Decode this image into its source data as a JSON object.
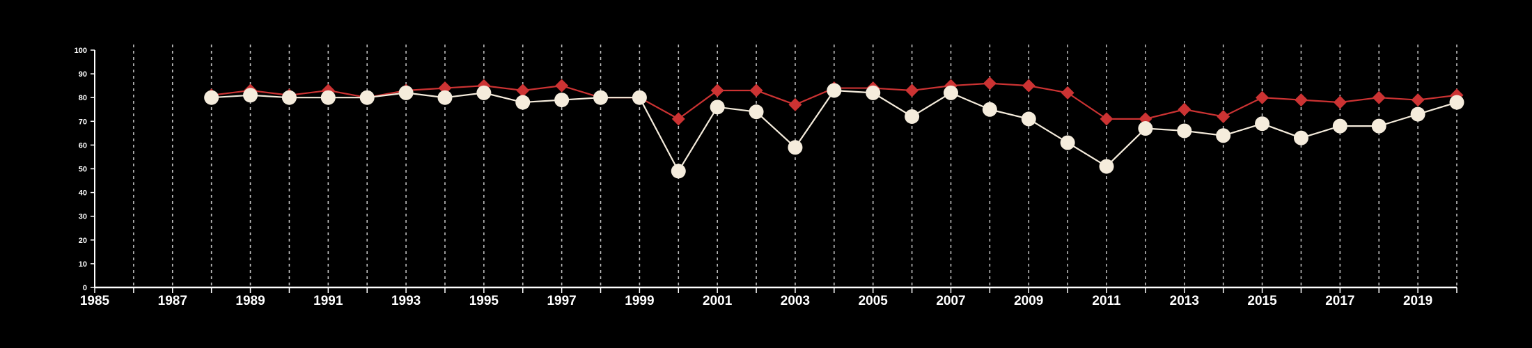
{
  "chart_data": {
    "type": "line",
    "title": "",
    "xlabel": "",
    "ylabel": "",
    "xlim": [
      1985,
      2020
    ],
    "ylim": [
      0,
      100
    ],
    "y_ticks": [
      0,
      10,
      20,
      30,
      40,
      50,
      60,
      70,
      80,
      90,
      100
    ],
    "x_tick_labels": [
      "1985",
      "1987",
      "1989",
      "1991",
      "1993",
      "1995",
      "1997",
      "1999",
      "2001",
      "2003",
      "2005",
      "2007",
      "2009",
      "2011",
      "2013",
      "2015",
      "2017",
      "2019"
    ],
    "grid": "vertical dashed at every year",
    "legend": "none",
    "x": [
      1988,
      1989,
      1990,
      1991,
      1992,
      1993,
      1994,
      1995,
      1996,
      1997,
      1998,
      1999,
      2000,
      2001,
      2002,
      2003,
      2004,
      2005,
      2006,
      2007,
      2008,
      2009,
      2010,
      2011,
      2012,
      2013,
      2014,
      2015,
      2016,
      2017,
      2018,
      2019,
      2020
    ],
    "series": [
      {
        "color": "#cc3333",
        "marker": "diamond",
        "values": [
          81,
          83,
          81,
          83,
          80,
          83,
          84,
          85,
          83,
          85,
          80,
          80,
          71,
          83,
          83,
          77,
          84,
          84,
          83,
          85,
          86,
          85,
          82,
          71,
          71,
          75,
          72,
          80,
          79,
          78,
          80,
          79,
          81
        ]
      },
      {
        "color": "#f5ecdc",
        "marker": "circle",
        "values": [
          80,
          81,
          80,
          80,
          80,
          82,
          80,
          82,
          78,
          79,
          80,
          80,
          49,
          76,
          74,
          59,
          83,
          82,
          72,
          82,
          75,
          71,
          61,
          51,
          67,
          66,
          64,
          69,
          63,
          68,
          68,
          73,
          78
        ]
      }
    ]
  }
}
